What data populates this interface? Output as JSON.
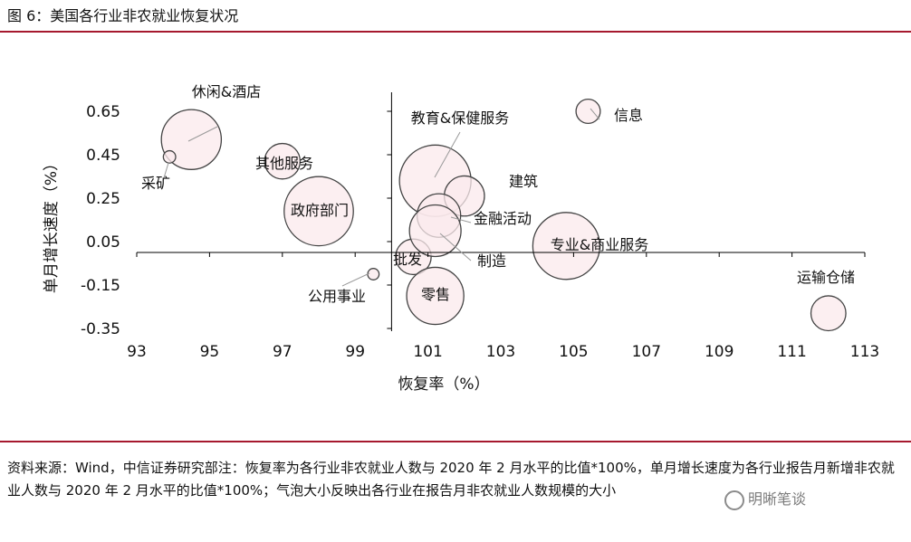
{
  "header": {
    "figure_title": "图 6：美国各行业非农就业恢复状况"
  },
  "colors": {
    "accent_rule": "#a6192e",
    "bubble_fill": "#fbe9ec",
    "bubble_stroke": "#444444",
    "axis": "#000000"
  },
  "chart_data": {
    "type": "scatter",
    "title": "",
    "xlabel": "恢复率（%）",
    "ylabel": "单月增长速度（%）",
    "xlim": [
      93,
      113
    ],
    "ylim": [
      -0.35,
      0.75
    ],
    "x_ticks": [
      "93",
      "95",
      "97",
      "99",
      "101",
      "103",
      "105",
      "107",
      "109",
      "111",
      "113"
    ],
    "y_ticks": [
      "0.65",
      "0.45",
      "0.25",
      "0.05",
      "-0.15",
      "-0.35"
    ],
    "grid": false,
    "series": [
      {
        "points": [
          {
            "label": "休闲&酒店",
            "x": 94.5,
            "y": 0.52,
            "size": 16.5
          },
          {
            "label": "采矿",
            "x": 93.9,
            "y": 0.44,
            "size": 0.7
          },
          {
            "label": "其他服务",
            "x": 97.0,
            "y": 0.42,
            "size": 5.8
          },
          {
            "label": "政府部门",
            "x": 98.0,
            "y": 0.19,
            "size": 22.0
          },
          {
            "label": "公用事业",
            "x": 99.5,
            "y": -0.1,
            "size": 0.6
          },
          {
            "label": "批发",
            "x": 100.6,
            "y": -0.02,
            "size": 5.8
          },
          {
            "label": "教育&保健服务",
            "x": 101.2,
            "y": 0.33,
            "size": 23.5
          },
          {
            "label": "建筑",
            "x": 102.0,
            "y": 0.26,
            "size": 7.4
          },
          {
            "label": "金融活动",
            "x": 101.3,
            "y": 0.17,
            "size": 8.7
          },
          {
            "label": "制造",
            "x": 101.2,
            "y": 0.1,
            "size": 12.2
          },
          {
            "label": "零售",
            "x": 101.2,
            "y": -0.2,
            "size": 15.0
          },
          {
            "label": "信息",
            "x": 105.4,
            "y": 0.65,
            "size": 2.7
          },
          {
            "label": "专业&商业服务",
            "x": 104.8,
            "y": 0.03,
            "size": 20.6
          },
          {
            "label": "运输仓储",
            "x": 112.0,
            "y": -0.28,
            "size": 5.6
          }
        ]
      }
    ]
  },
  "footer": {
    "source_note": "资料来源：Wind，中信证券研究部注：恢复率为各行业非农就业人数与 2020 年 2 月水平的比值*100%，单月增长速度为各行业报告月新增非农就业人数与 2020 年 2 月水平的比值*100%；气泡大小反映出各行业在报告月非农就业人数规模的大小",
    "watermark": "明晰笔谈"
  }
}
